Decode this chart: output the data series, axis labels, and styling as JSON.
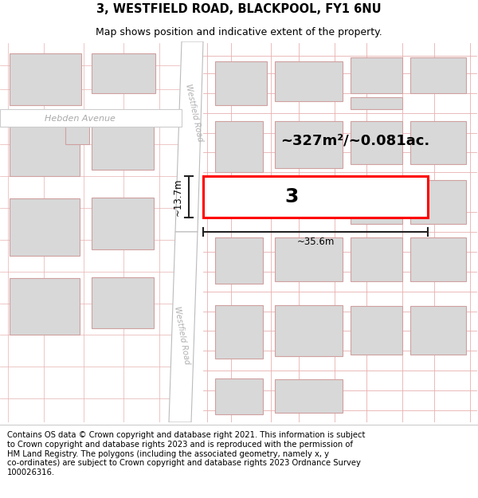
{
  "title": "3, WESTFIELD ROAD, BLACKPOOL, FY1 6NU",
  "subtitle": "Map shows position and indicative extent of the property.",
  "footer": "Contains OS data © Crown copyright and database right 2021. This information is subject\nto Crown copyright and database rights 2023 and is reproduced with the permission of\nHM Land Registry. The polygons (including the associated geometry, namely x, y\nco-ordinates) are subject to Crown copyright and database rights 2023 Ordnance Survey\n100026316.",
  "map_bg": "#ffffff",
  "building_fill": "#d8d8d8",
  "building_edge": "#d0a0a0",
  "highlight_fill": "#ffffff",
  "highlight_outline": "#ff0000",
  "road_fill": "#f0f0f0",
  "road_edge": "#cccccc",
  "grid_color": "#e8b0b0",
  "dim_color": "#222222",
  "label_color": "#aaaaaa",
  "area_text": "~327m²/~0.081ac.",
  "property_label": "3",
  "dim_width": "~35.6m",
  "dim_height": "~13.7m",
  "title_fontsize": 10.5,
  "subtitle_fontsize": 9,
  "footer_fontsize": 7.2,
  "area_fontsize": 13,
  "prop_label_fontsize": 18,
  "dim_fontsize": 8.5,
  "road_label_fontsize": 7,
  "street_label_fontsize": 8
}
